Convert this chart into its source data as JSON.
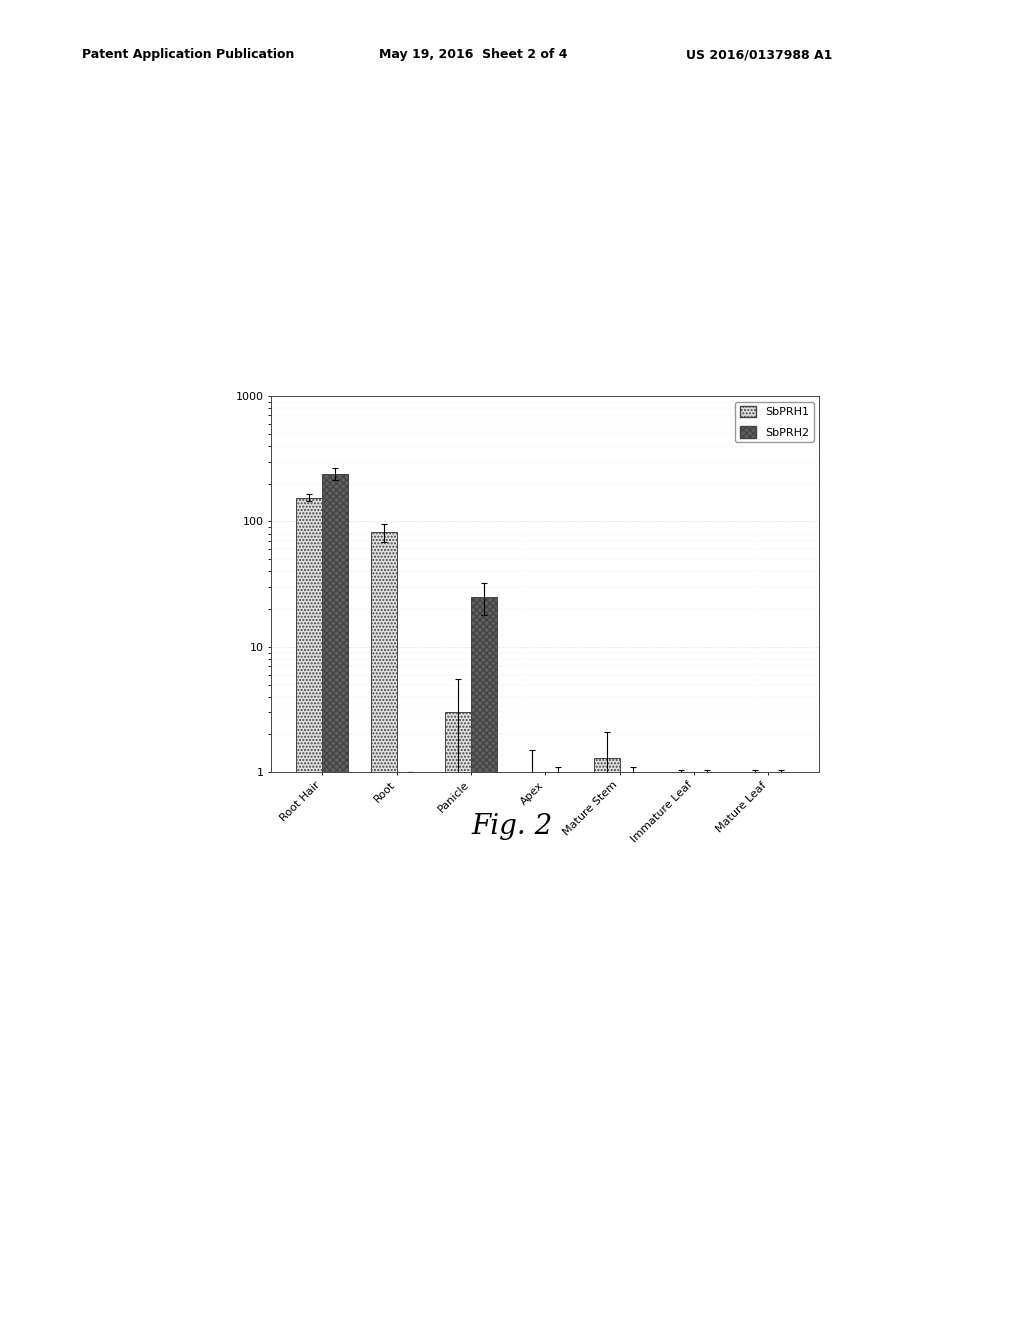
{
  "categories": [
    "Root Hair",
    "Root",
    "Panicle",
    "Apex",
    "Mature Stem",
    "Immature Leaf",
    "Mature Leaf"
  ],
  "sbprh1_values": [
    155,
    82,
    3.0,
    1.0,
    1.3,
    1.0,
    1.0
  ],
  "sbprh2_values": [
    240,
    1.0,
    25,
    1.0,
    1.0,
    1.0,
    1.0
  ],
  "sbprh1_errors": [
    10,
    14,
    2.5,
    0.5,
    0.8,
    0.05,
    0.05
  ],
  "sbprh2_errors": [
    25,
    0.0,
    7,
    0.1,
    0.1,
    0.05,
    0.05
  ],
  "sbprh1_color": "#e0e0e0",
  "sbprh2_color": "#606060",
  "sbprh1_hatch": ".....",
  "sbprh2_hatch": "xxxxx",
  "ylim_min": 1,
  "ylim_max": 1000,
  "bar_width": 0.35,
  "legend_labels": [
    "SbPRH1",
    "SbPRH2"
  ],
  "fig_caption": "Fig. 2",
  "header_left": "Patent Application Publication",
  "header_center": "May 19, 2016  Sheet 2 of 4",
  "header_right": "US 2016/0137988 A1",
  "background_color": "#ffffff",
  "edge_color": "#444444",
  "grid_color": "#cccccc",
  "header_fontsize": 9,
  "caption_fontsize": 20,
  "tick_fontsize": 8,
  "legend_fontsize": 8
}
